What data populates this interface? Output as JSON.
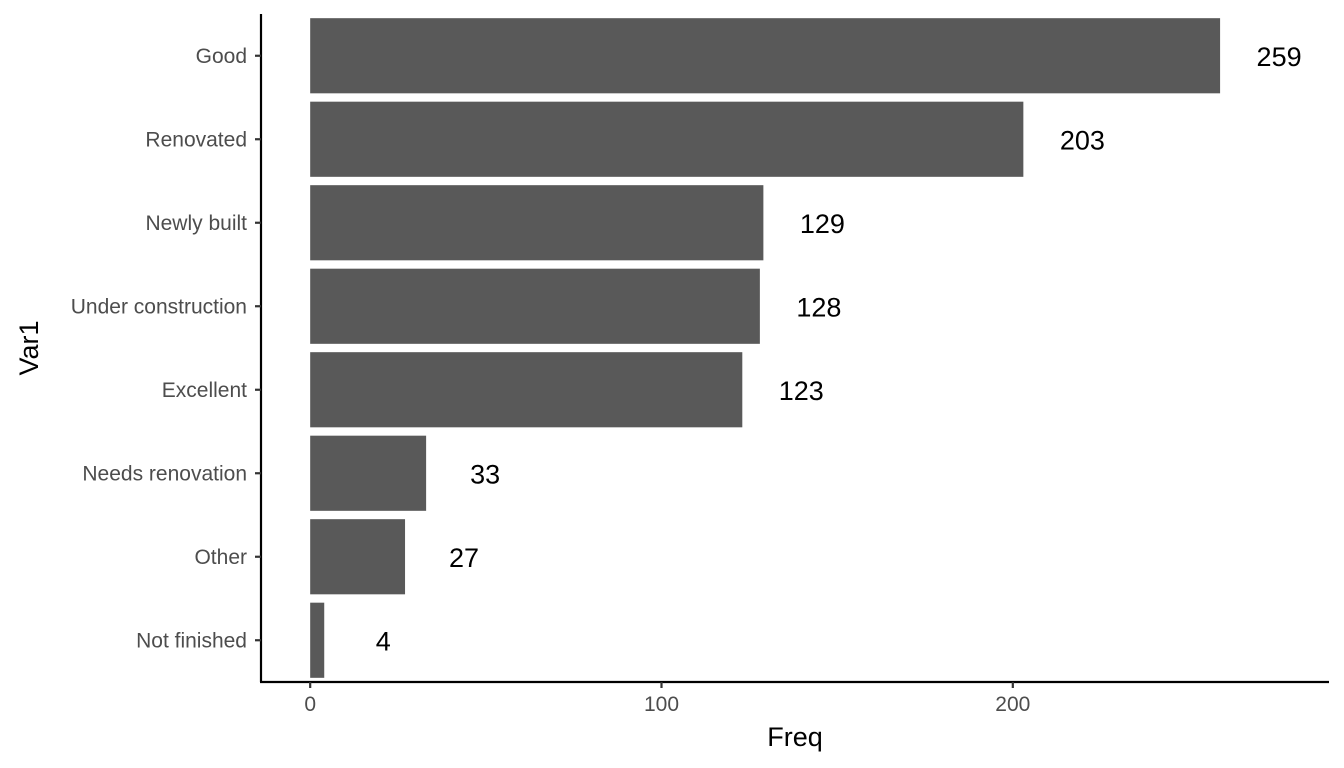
{
  "chart_data": {
    "type": "bar",
    "orientation": "horizontal",
    "categories": [
      "Good",
      "Renovated",
      "Newly built",
      "Under construction",
      "Excellent",
      "Needs renovation",
      "Other",
      "Not finished"
    ],
    "values": [
      259,
      203,
      129,
      128,
      123,
      33,
      27,
      4
    ],
    "data_labels": [
      "259",
      "203",
      "129",
      "128",
      "123",
      "33",
      "27",
      "4"
    ],
    "xlabel": "Freq",
    "ylabel": "Var1",
    "xlim": [
      -14,
      290
    ],
    "x_ticks": [
      0,
      100,
      200
    ],
    "x_tick_labels": [
      "0",
      "100",
      "200"
    ],
    "grid": false,
    "legend": "none",
    "bar_color": "#595959",
    "axis_color": "#000000",
    "tick_label_color": "#4d4d4d",
    "label_color": "#000000"
  }
}
